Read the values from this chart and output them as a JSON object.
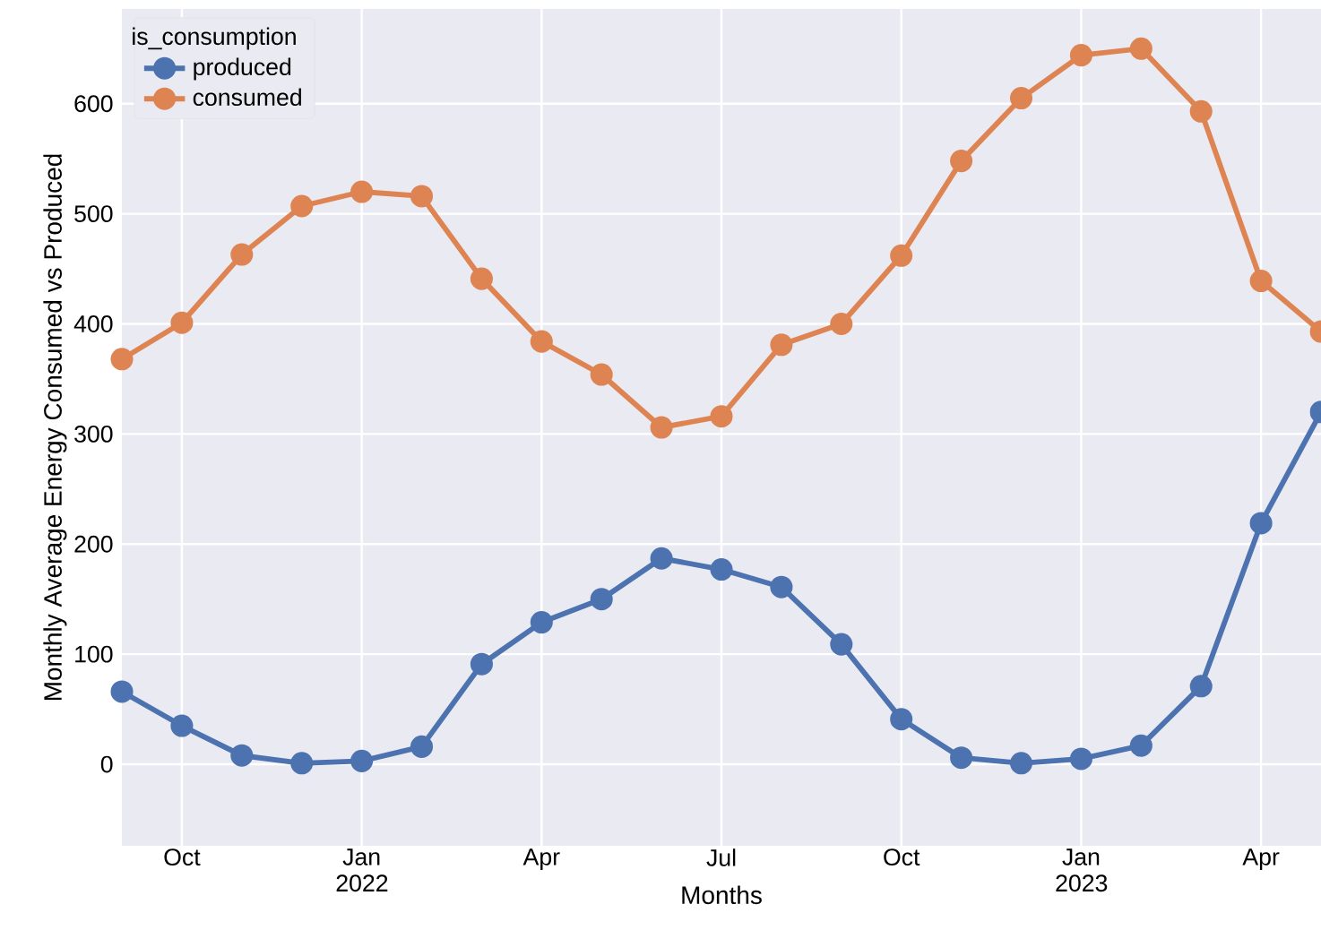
{
  "chart_data": {
    "type": "line",
    "xlabel": "Months",
    "ylabel": "Monthly Average Energy Consumed vs Produced",
    "legend_title": "is_consumption",
    "x": [
      "2021-09",
      "2021-10",
      "2021-11",
      "2021-12",
      "2022-01",
      "2022-02",
      "2022-03",
      "2022-04",
      "2022-05",
      "2022-06",
      "2022-07",
      "2022-08",
      "2022-09",
      "2022-10",
      "2022-11",
      "2022-12",
      "2023-01",
      "2023-02",
      "2023-03",
      "2023-04",
      "2023-05"
    ],
    "series": [
      {
        "name": "produced",
        "color": "#4c72b0",
        "values": [
          66,
          35,
          8,
          1,
          3,
          16,
          91,
          129,
          150,
          187,
          177,
          161,
          109,
          41,
          6,
          1,
          5,
          17,
          71,
          219,
          320
        ]
      },
      {
        "name": "consumed",
        "color": "#dd8452",
        "values": [
          368,
          401,
          463,
          507,
          520,
          516,
          441,
          384,
          354,
          306,
          316,
          381,
          400,
          462,
          548,
          605,
          644,
          650,
          593,
          439,
          393
        ]
      }
    ],
    "xlim": [
      "2021-09",
      "2023-05"
    ],
    "ylim": [
      -74,
      686
    ],
    "xticks": [
      {
        "value": "2021-10",
        "label": "Oct"
      },
      {
        "value": "2022-01",
        "label": "Jan 2022"
      },
      {
        "value": "2022-04",
        "label": "Apr"
      },
      {
        "value": "2022-07",
        "label": "Jul"
      },
      {
        "value": "2022-10",
        "label": "Oct"
      },
      {
        "value": "2023-01",
        "label": "Jan 2023"
      },
      {
        "value": "2023-04",
        "label": "Apr"
      }
    ],
    "yticks": [
      0,
      100,
      200,
      300,
      400,
      500,
      600
    ],
    "grid": true,
    "legend": "top left",
    "marker": "circle",
    "line_style": "solid"
  }
}
